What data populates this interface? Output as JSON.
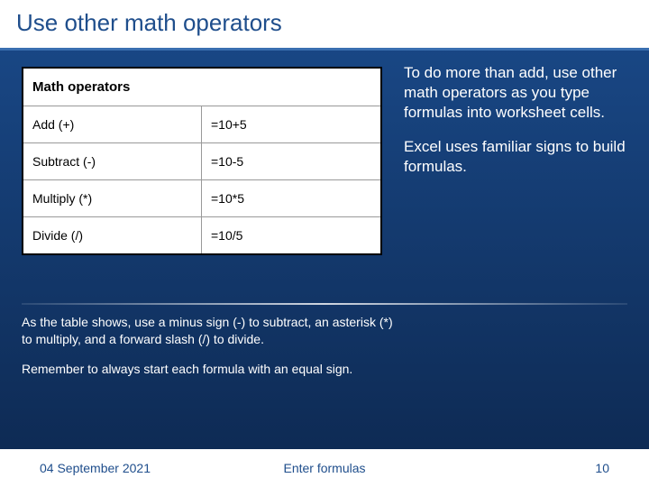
{
  "title": "Use other math operators",
  "table": {
    "header": "Math operators",
    "rows": [
      {
        "op": "Add (+)",
        "ex": "=10+5"
      },
      {
        "op": "Subtract (-)",
        "ex": "=10-5"
      },
      {
        "op": "Multiply (*)",
        "ex": "=10*5"
      },
      {
        "op": "Divide (/)",
        "ex": "=10/5"
      }
    ]
  },
  "side": {
    "p1": "To do more than add, use other math operators as you type formulas into worksheet cells.",
    "p2": "Excel uses familiar signs to build formulas."
  },
  "below": {
    "p1": "As the table shows, use a minus sign (-) to subtract, an asterisk (*) to multiply, and a forward slash (/) to divide.",
    "p2": "Remember to always start each formula with an equal sign."
  },
  "footer": {
    "date": "04 September 2021",
    "center": "Enter formulas",
    "page": "10"
  },
  "colors": {
    "title_text": "#1f4e8c",
    "bg_top": "#1a4a8a",
    "bg_bottom": "#0d2850",
    "table_bg": "#ffffff",
    "table_border": "#000000",
    "cell_border": "#999999",
    "body_text_light": "#ffffff"
  }
}
